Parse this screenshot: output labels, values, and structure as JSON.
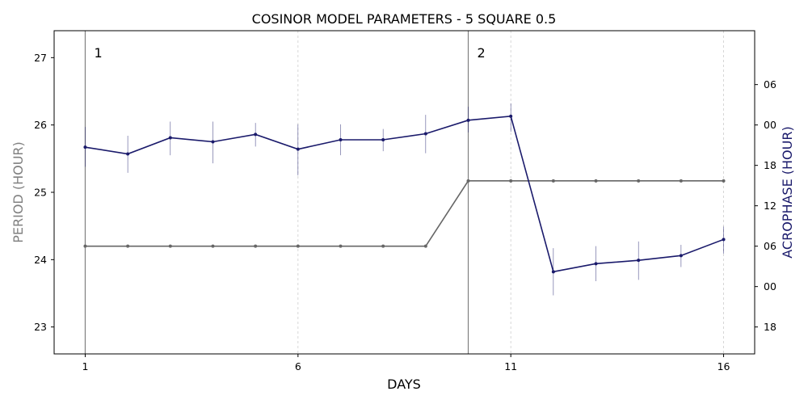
{
  "chart_data": {
    "type": "line",
    "title": "COSINOR MODEL PARAMETERS - 5 SQUARE 0.5",
    "xlabel": "DAYS",
    "ylabel_left": "PERIOD (HOUR)",
    "ylabel_right": "ACROPHASE (HOUR)",
    "x_ticks": [
      1,
      6,
      11,
      16
    ],
    "xlim": [
      0.27,
      16.73
    ],
    "left_yticks": [
      23,
      24,
      25,
      26,
      27
    ],
    "left_ylim": [
      22.6,
      27.4
    ],
    "right_yticks": [
      "06",
      "00",
      "18",
      "12",
      "06",
      "00",
      "18"
    ],
    "grid": "vertical dotted",
    "colors": {
      "period": "#666666",
      "acrophase": "#1a1a6b",
      "left_label": "#808080",
      "right_label": "#1a1a6b",
      "segment_line": "#808080"
    },
    "segments": [
      {
        "label": "1",
        "x": 1
      },
      {
        "label": "2",
        "x": 10
      }
    ],
    "series": [
      {
        "name": "PERIOD",
        "x": [
          1,
          2,
          3,
          4,
          5,
          6,
          7,
          8,
          9,
          10,
          11,
          12,
          13,
          14,
          15,
          16
        ],
        "values": [
          24.2,
          24.2,
          24.2,
          24.2,
          24.2,
          24.2,
          24.2,
          24.2,
          24.2,
          25.17,
          25.17,
          25.17,
          25.17,
          25.17,
          25.17,
          25.17
        ]
      },
      {
        "name": "ACROPHASE",
        "x": [
          1,
          2,
          3,
          4,
          5,
          6,
          7,
          8,
          9,
          10,
          11,
          12,
          13,
          14,
          15,
          16
        ],
        "values": [
          25.67,
          25.57,
          25.81,
          25.75,
          25.86,
          25.64,
          25.78,
          25.78,
          25.87,
          26.07,
          26.13,
          23.82,
          23.94,
          23.99,
          24.06,
          24.3
        ],
        "err_low": [
          25.38,
          25.29,
          25.55,
          25.43,
          25.68,
          25.25,
          25.55,
          25.61,
          25.58,
          25.89,
          25.9,
          23.47,
          23.68,
          23.7,
          23.89,
          24.09
        ],
        "err_high": [
          25.97,
          25.84,
          26.05,
          26.05,
          26.03,
          26.01,
          26.01,
          25.94,
          26.15,
          26.27,
          26.32,
          24.17,
          24.2,
          24.27,
          24.22,
          24.49
        ]
      }
    ]
  }
}
